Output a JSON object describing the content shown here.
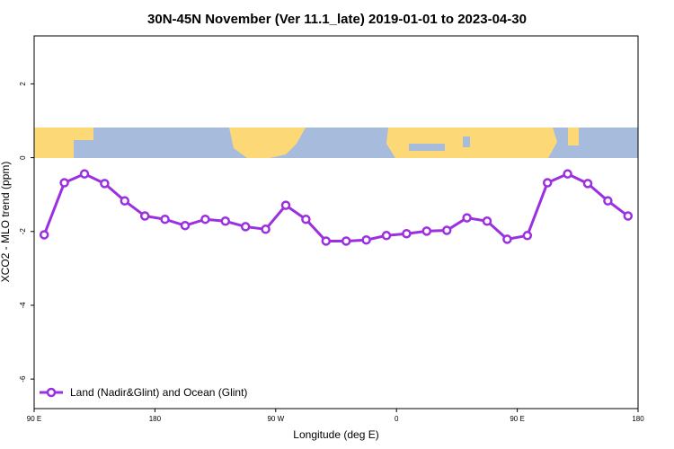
{
  "chart_data": {
    "type": "line",
    "title": "30N-45N November (Ver 11.1_late)   2019-01-01 to 2023-04-30",
    "x_label": "Longitude (deg E)",
    "y_label": "XCO2 - MLO trend (ppm)",
    "xlim": [
      90,
      540
    ],
    "xticks": [
      {
        "value": 90,
        "label": "90 E"
      },
      180,
      {
        "value": 270,
        "label": "90 W"
      },
      {
        "value": 360,
        "label": "0"
      },
      {
        "value": 450,
        "label": "90 E"
      },
      {
        "value": 540,
        "label": "180"
      }
    ],
    "ylim": [
      -6.8,
      3.3
    ],
    "yticks": [
      -6,
      -4,
      -2,
      0,
      2
    ],
    "legend": "bottom-left",
    "x": [
      97.5,
      112.5,
      127.5,
      142.5,
      157.5,
      172.5,
      187.5,
      202.5,
      217.5,
      232.5,
      247.5,
      262.5,
      277.5,
      292.5,
      307.5,
      322.5,
      337.5,
      352.5,
      367.5,
      382.5,
      397.5,
      412.5,
      427.5,
      442.5,
      457.5,
      472.5,
      487.5,
      502.5,
      517.5,
      532.5
    ],
    "series": [
      {
        "name": "Land (Nadir&Glint) and Ocean (Glint)",
        "color": "#9b30e0",
        "values": [
          -2.09,
          -0.68,
          -0.44,
          -0.7,
          -1.17,
          -1.58,
          -1.67,
          -1.84,
          -1.67,
          -1.72,
          -1.87,
          -1.94,
          -1.29,
          -1.67,
          -2.26,
          -2.26,
          -2.23,
          -2.11,
          -2.06,
          -1.99,
          -1.97,
          -1.63,
          -1.72,
          -2.21,
          -2.11,
          -0.68,
          -0.44,
          -0.7,
          -1.17,
          -1.58
        ]
      }
    ]
  }
}
